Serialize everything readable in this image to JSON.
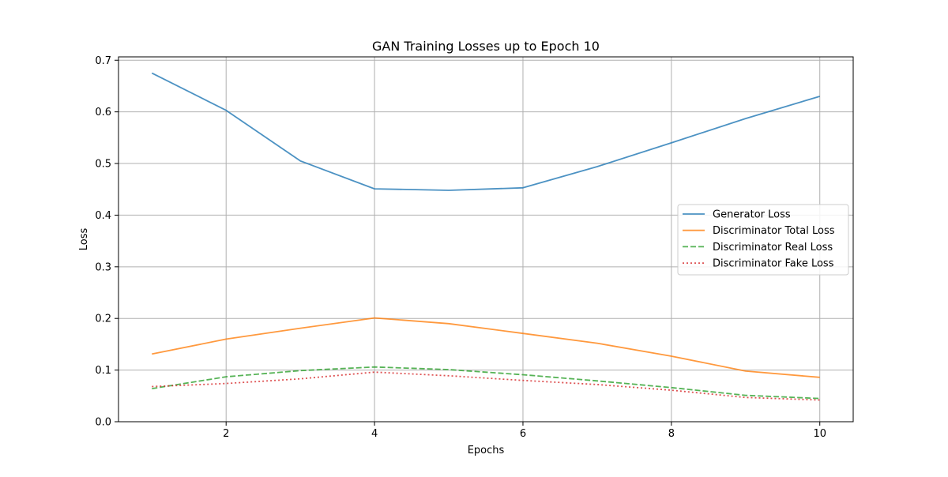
{
  "chart_data": {
    "type": "line",
    "title": "GAN Training Losses up to Epoch 10",
    "xlabel": "Epochs",
    "ylabel": "Loss",
    "xlim": [
      0.55,
      10.45
    ],
    "ylim": [
      0,
      0.7065
    ],
    "x": [
      1,
      2,
      3,
      4,
      5,
      6,
      7,
      8,
      9,
      10
    ],
    "xticks": [
      2,
      4,
      6,
      8,
      10
    ],
    "xtick_labels": [
      "2",
      "4",
      "6",
      "8",
      "10"
    ],
    "yticks": [
      0,
      0.1,
      0.2,
      0.3,
      0.4,
      0.5,
      0.6,
      0.7
    ],
    "ytick_labels": [
      "0.0",
      "0.1",
      "0.2",
      "0.3",
      "0.4",
      "0.5",
      "0.6",
      "0.7"
    ],
    "grid": true,
    "legend_position": "center-right",
    "series": [
      {
        "name": "Generator Loss",
        "color": "#1f77b4",
        "style": "solid",
        "values": [
          0.675,
          0.603,
          0.505,
          0.451,
          0.448,
          0.453,
          0.494,
          0.54,
          0.587,
          0.63
        ]
      },
      {
        "name": "Discriminator Total Loss",
        "color": "#ff7f0e",
        "style": "solid",
        "values": [
          0.131,
          0.16,
          0.181,
          0.201,
          0.19,
          0.171,
          0.152,
          0.127,
          0.098,
          0.086
        ]
      },
      {
        "name": "Discriminator Real Loss",
        "color": "#2ca02c",
        "style": "dashed",
        "values": [
          0.064,
          0.087,
          0.099,
          0.106,
          0.101,
          0.091,
          0.079,
          0.066,
          0.051,
          0.045
        ]
      },
      {
        "name": "Discriminator Fake Loss",
        "color": "#d62728",
        "style": "dotted",
        "values": [
          0.068,
          0.074,
          0.083,
          0.096,
          0.089,
          0.08,
          0.072,
          0.061,
          0.047,
          0.042
        ]
      }
    ]
  }
}
